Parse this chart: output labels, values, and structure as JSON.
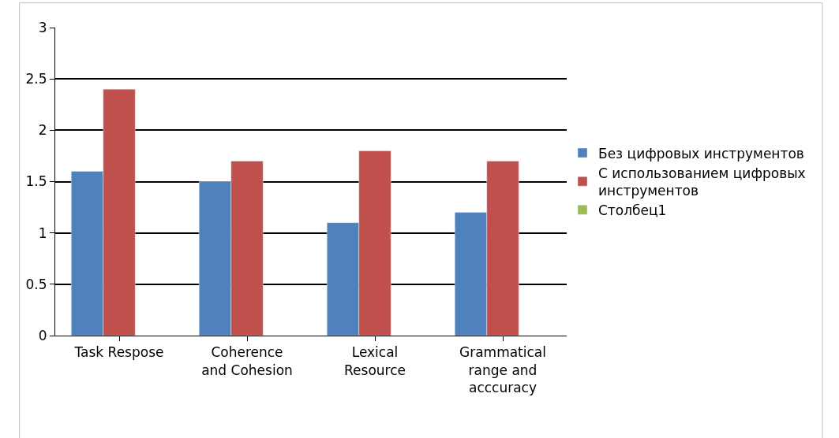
{
  "chart_data": {
    "type": "bar",
    "categories": [
      "Task Respose",
      "Coherence and Cohesion",
      "Lexical Resource",
      "Grammatical range and acccuracy"
    ],
    "series": [
      {
        "name": "Без цифровых инструментов",
        "color": "#4f81bd",
        "values": [
          1.6,
          1.5,
          1.1,
          1.2
        ]
      },
      {
        "name": "С использованием цифровых инструментов",
        "color": "#c0504d",
        "values": [
          2.4,
          1.7,
          1.8,
          1.7
        ]
      },
      {
        "name": "Столбец1",
        "color": "#9bbb59",
        "values": [
          null,
          null,
          null,
          null
        ]
      }
    ],
    "ylim": [
      0,
      3
    ],
    "yticks": [
      0,
      0.5,
      1,
      1.5,
      2,
      2.5,
      3
    ],
    "grid": "y",
    "legend": "right"
  }
}
